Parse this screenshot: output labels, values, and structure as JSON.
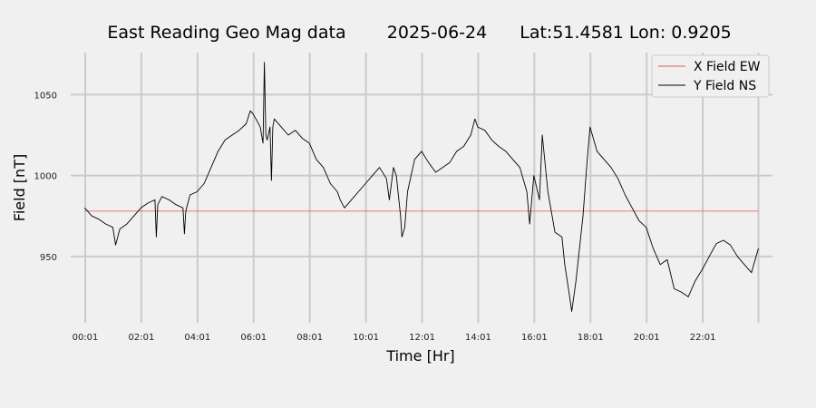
{
  "chart_data": {
    "type": "line",
    "title_parts": [
      "East Reading Geo Mag data",
      "2025-06-24",
      "Lat:51.4581  Lon: 0.9205"
    ],
    "xlabel": "Time  [Hr]",
    "ylabel": "Field  [nT]",
    "xlim": [
      -0.5,
      24.5
    ],
    "ylim": [
      909,
      1076
    ],
    "yticks": [
      950,
      1000,
      1050
    ],
    "xtick_values": [
      0.017,
      2.017,
      4.017,
      6.017,
      8.017,
      10.017,
      12.017,
      14.017,
      16.017,
      18.017,
      20.017,
      22.017
    ],
    "xtick_labels": [
      "00:01",
      "02:01",
      "04:01",
      "06:01",
      "08:01",
      "10:01",
      "12:01",
      "14:01",
      "16:01",
      "18:01",
      "20:01",
      "22:01"
    ],
    "grid": true,
    "legend_position": "top-right",
    "series": [
      {
        "name": "X Field EW",
        "color": "#e2574c",
        "x": [
          0.0,
          24.0
        ],
        "y": [
          978,
          978
        ]
      },
      {
        "name": "Y Field NS",
        "color": "#000000",
        "x": [
          0.0,
          0.25,
          0.5,
          0.75,
          1.0,
          1.1,
          1.25,
          1.5,
          1.75,
          2.0,
          2.25,
          2.5,
          2.55,
          2.6,
          2.75,
          3.0,
          3.25,
          3.5,
          3.55,
          3.6,
          3.75,
          4.0,
          4.25,
          4.5,
          4.75,
          5.0,
          5.25,
          5.5,
          5.75,
          5.9,
          6.0,
          6.1,
          6.25,
          6.35,
          6.4,
          6.45,
          6.5,
          6.6,
          6.65,
          6.7,
          6.75,
          7.0,
          7.25,
          7.5,
          7.75,
          8.0,
          8.25,
          8.5,
          8.75,
          9.0,
          9.1,
          9.25,
          9.5,
          9.75,
          10.0,
          10.25,
          10.5,
          10.75,
          10.85,
          11.0,
          11.1,
          11.25,
          11.3,
          11.4,
          11.5,
          11.75,
          12.0,
          12.25,
          12.5,
          12.75,
          13.0,
          13.25,
          13.5,
          13.75,
          13.9,
          14.0,
          14.25,
          14.5,
          14.75,
          15.0,
          15.25,
          15.5,
          15.75,
          15.85,
          16.0,
          16.2,
          16.3,
          16.5,
          16.75,
          17.0,
          17.1,
          17.25,
          17.35,
          17.5,
          17.75,
          17.9,
          18.0,
          18.25,
          18.5,
          18.75,
          19.0,
          19.25,
          19.5,
          19.75,
          20.0,
          20.25,
          20.5,
          20.75,
          21.0,
          21.25,
          21.5,
          21.75,
          22.0,
          22.25,
          22.5,
          22.75,
          23.0,
          23.25,
          23.5,
          23.75,
          24.0
        ],
        "y": [
          980,
          975,
          973,
          970,
          968,
          957,
          967,
          970,
          975,
          980,
          983,
          985,
          962,
          982,
          987,
          985,
          982,
          980,
          964,
          978,
          988,
          990,
          995,
          1005,
          1015,
          1022,
          1025,
          1028,
          1032,
          1040,
          1038,
          1035,
          1030,
          1020,
          1070,
          1025,
          1022,
          1030,
          997,
          1030,
          1035,
          1030,
          1025,
          1028,
          1023,
          1020,
          1010,
          1005,
          995,
          990,
          985,
          980,
          985,
          990,
          995,
          1000,
          1005,
          998,
          985,
          1005,
          1000,
          975,
          962,
          968,
          990,
          1010,
          1015,
          1008,
          1002,
          1005,
          1008,
          1015,
          1018,
          1025,
          1035,
          1030,
          1028,
          1022,
          1018,
          1015,
          1010,
          1005,
          990,
          970,
          1000,
          985,
          1025,
          990,
          965,
          962,
          945,
          928,
          916,
          935,
          975,
          1010,
          1030,
          1015,
          1010,
          1005,
          998,
          988,
          980,
          972,
          968,
          955,
          945,
          948,
          930,
          928,
          925,
          935,
          942,
          950,
          958,
          960,
          957,
          950,
          945,
          940,
          955
        ]
      }
    ]
  }
}
